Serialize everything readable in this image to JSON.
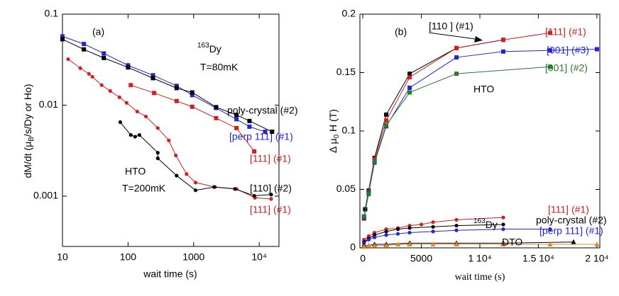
{
  "chart_data": [
    {
      "type": "line",
      "xscale": "log",
      "yscale": "log",
      "xlabel": "wait time (s)",
      "ylabel": [
        "dM/dt (μ",
        "B",
        "/s/Dy or Ho)"
      ],
      "xlim": [
        10,
        20000
      ],
      "ylim": [
        0.00028,
        0.1
      ],
      "xticks": [
        10,
        100,
        1000,
        {
          "value": 10000,
          "label": "10⁴"
        }
      ],
      "yticks": [
        0.001,
        0.01,
        0.1
      ],
      "annotations": [
        "(a)",
        [
          "163",
          "Dy"
        ],
        "T=80mK",
        "HTO",
        "T=200mK"
      ],
      "series": [
        {
          "name": "[perp 111] (#1)",
          "color": "#2323d8",
          "marker": "square",
          "x": [
            10,
            21.2,
            42.7,
            100,
            240,
            550,
            950,
            2200,
            4500,
            7100,
            12300
          ],
          "values": [
            0.057,
            0.047,
            0.037,
            0.0274,
            0.0213,
            0.0163,
            0.0129,
            0.0093,
            0.007,
            0.0058,
            0.0051
          ]
        },
        {
          "name": "poly-crystal (#2)",
          "color": "#000000",
          "marker": "square",
          "x": [
            10,
            21.2,
            42.7,
            100,
            240,
            550,
            950,
            2200,
            4500,
            7100,
            15700
          ],
          "values": [
            0.053,
            0.041,
            0.033,
            0.026,
            0.0198,
            0.0154,
            0.0138,
            0.0095,
            0.0078,
            0.0067,
            0.0051
          ]
        },
        {
          "name": "[111] (#1)",
          "color": "#cc2222",
          "marker": "square",
          "x": [
            110,
            250,
            550,
            950,
            2200,
            4500,
            8400
          ],
          "values": [
            0.0166,
            0.0136,
            0.0111,
            0.0096,
            0.0072,
            0.0056,
            0.0031
          ]
        },
        {
          "name": "[111] (#1)",
          "color": "#cc2222",
          "marker": "circle",
          "x": [
            12.2,
            18.7,
            25.3,
            28.6,
            39.6,
            53.5,
            74,
            95,
            138,
            187,
            284,
            418,
            535,
            780,
            1070,
            2120,
            4500,
            8600,
            15200
          ],
          "values": [
            0.032,
            0.0255,
            0.0221,
            0.0205,
            0.0166,
            0.0143,
            0.0122,
            0.0106,
            0.0085,
            0.0075,
            0.0056,
            0.0041,
            0.0028,
            0.00175,
            0.00141,
            0.00126,
            0.0012,
            0.00096,
            0.00093
          ]
        },
        {
          "name": "[110] (#2)",
          "color": "#000000",
          "marker": "circle",
          "x": [
            76,
            110,
            128,
            149,
            284,
            284,
            550,
            1070,
            2050,
            4260,
            8400,
            15200
          ],
          "values": [
            0.0065,
            0.0047,
            0.0045,
            0.0047,
            0.003,
            0.0026,
            0.00168,
            0.00116,
            0.00126,
            0.0012,
            0.00101,
            0.00104
          ]
        }
      ]
    },
    {
      "type": "line",
      "xscale": "linear",
      "yscale": "linear",
      "xlabel": "wait time (s)",
      "ylabel": [
        "Δ μ",
        "0",
        " H (T)"
      ],
      "xlim": [
        -250,
        20250
      ],
      "ylim": [
        0,
        0.2
      ],
      "xticks": [
        0,
        5000,
        {
          "value": 10000,
          "label": "1 10⁴"
        },
        {
          "value": 15000,
          "label": "1.5 10⁴"
        },
        {
          "value": 20000,
          "label": "2 10⁴"
        }
      ],
      "yticks": [
        0,
        0.05,
        0.1,
        0.15,
        0.2
      ],
      "annotations": [
        "(b)",
        "HTO",
        [
          "163",
          "Dy"
        ],
        "DTO"
      ],
      "series": [
        {
          "name": "[110 ] (#1)",
          "color": "#000000",
          "marker": "square",
          "x": [
            200,
            500,
            1000,
            2000,
            4000,
            8000,
            12000
          ],
          "values": [
            0.033,
            0.049,
            0.077,
            0.114,
            0.149,
            0.171,
            0.178
          ]
        },
        {
          "name": "[111] (#1)",
          "color": "#cc2222",
          "marker": "square",
          "x": [
            100,
            500,
            1000,
            2000,
            4000,
            8000,
            12000,
            16000
          ],
          "values": [
            0.025,
            0.048,
            0.076,
            0.109,
            0.146,
            0.171,
            0.178,
            0.184
          ]
        },
        {
          "name": "[001] (#3)",
          "color": "#2323d8",
          "marker": "square",
          "x": [
            100,
            500,
            1000,
            2000,
            4000,
            8000,
            12000,
            16000,
            20000
          ],
          "values": [
            0.026,
            0.047,
            0.073,
            0.104,
            0.137,
            0.163,
            0.168,
            0.169,
            0.17
          ]
        },
        {
          "name": "[001] (#2)",
          "color": "#2a7a2a",
          "marker": "square",
          "x": [
            100,
            500,
            1000,
            2000,
            4000,
            8000,
            16000
          ],
          "values": [
            0.027,
            0.046,
            0.074,
            0.105,
            0.133,
            0.149,
            0.155
          ]
        },
        {
          "name": "[111] (#1)",
          "color": "#cc2222",
          "marker": "circle",
          "x": [
            100,
            500,
            1000,
            2000,
            3000,
            4000,
            5000,
            6000,
            8000,
            12000
          ],
          "values": [
            0.007,
            0.01,
            0.013,
            0.016,
            0.017,
            0.019,
            0.02,
            0.022,
            0.024,
            0.026
          ]
        },
        {
          "name": "poly-crystal (#2)",
          "color": "#000000",
          "marker": "circle",
          "x": [
            100,
            500,
            1000,
            2000,
            3000,
            4000,
            6000,
            8000,
            12000
          ],
          "values": [
            0.005,
            0.008,
            0.011,
            0.014,
            0.016,
            0.017,
            0.018,
            0.019,
            0.02
          ]
        },
        {
          "name": "[perp 111] (#1)",
          "color": "#2323d8",
          "marker": "circle",
          "x": [
            100,
            500,
            1000,
            2000,
            3000,
            4000,
            6000,
            8000,
            12000,
            16000
          ],
          "values": [
            0.004,
            0.007,
            0.009,
            0.011,
            0.012,
            0.013,
            0.014,
            0.015,
            0.016,
            0.016
          ]
        },
        {
          "color": "#000000",
          "marker": "triangle",
          "x": [
            100,
            500,
            1000,
            2000,
            4000,
            8000,
            12000,
            18000
          ],
          "values": [
            0.002,
            0.002,
            0.003,
            0.003,
            0.004,
            0.004,
            0.004,
            0.005
          ]
        },
        {
          "color": "#e08a2a",
          "marker": "triangle",
          "x": [
            100,
            500,
            1000,
            2000,
            3000,
            4000,
            6000,
            8000,
            12000,
            16000,
            20000
          ],
          "values": [
            0.001,
            0.002,
            0.002,
            0.002,
            0.003,
            0.003,
            0.003,
            0.003,
            0.003,
            0.003,
            0.003
          ]
        }
      ]
    }
  ]
}
